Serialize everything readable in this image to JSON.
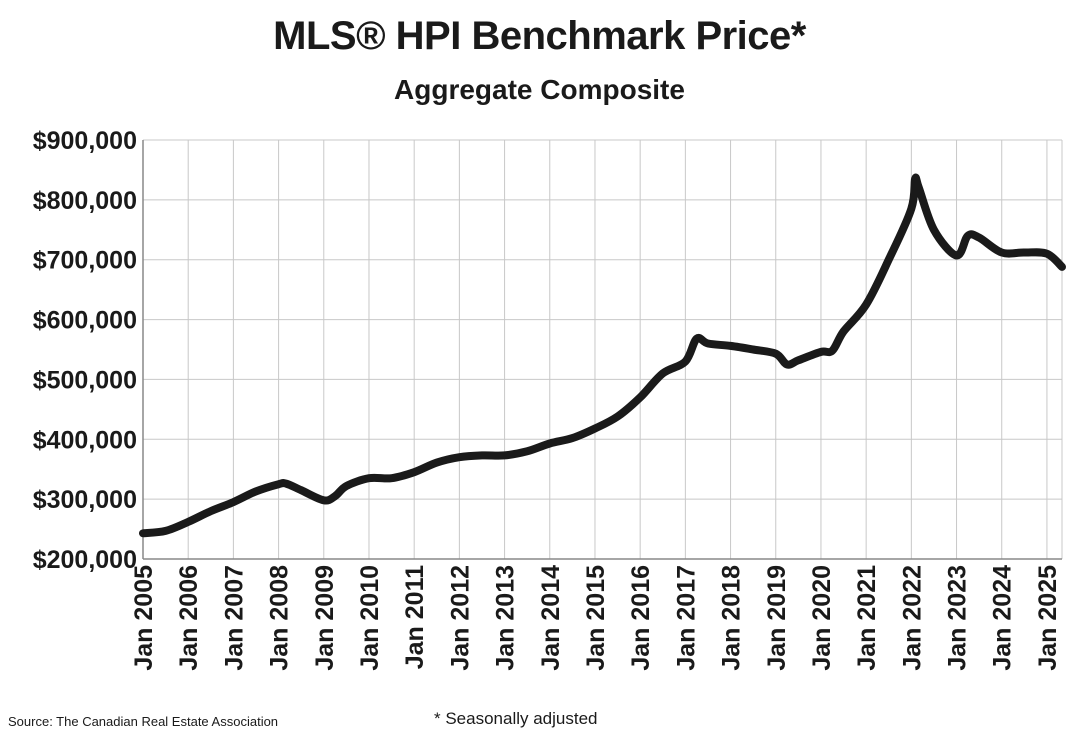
{
  "chart_data": {
    "type": "line",
    "title": "MLS® HPI Benchmark Price*",
    "subtitle": "Aggregate Composite",
    "xlabel": "",
    "ylabel": "",
    "ylim": [
      200000,
      900000
    ],
    "yticks": [
      "$200,000",
      "$300,000",
      "$400,000",
      "$500,000",
      "$600,000",
      "$700,000",
      "$800,000",
      "$900,000"
    ],
    "yticks_values": [
      200000,
      300000,
      400000,
      500000,
      600000,
      700000,
      800000,
      900000
    ],
    "xlim": [
      "2005-01",
      "2025-05"
    ],
    "xticks": [
      "Jan 2005",
      "Jan 2006",
      "Jan 2007",
      "Jan 2008",
      "Jan 2009",
      "Jan 2010",
      "Jan 2011",
      "Jan 2012",
      "Jan 2013",
      "Jan 2014",
      "Jan 2015",
      "Jan 2016",
      "Jan 2017",
      "Jan 2018",
      "Jan 2019",
      "Jan 2020",
      "Jan 2021",
      "Jan 2022",
      "Jan 2023",
      "Jan 2024",
      "Jan 2025"
    ],
    "grid": true,
    "line_color": "#1a1a1a",
    "series": [
      {
        "x": [
          "2005-01",
          "2005-07",
          "2006-01",
          "2006-07",
          "2007-01",
          "2007-07",
          "2008-01",
          "2008-03",
          "2008-07",
          "2009-01",
          "2009-04",
          "2009-07",
          "2010-01",
          "2010-07",
          "2011-01",
          "2011-07",
          "2012-01",
          "2012-07",
          "2013-01",
          "2013-07",
          "2014-01",
          "2014-07",
          "2015-01",
          "2015-07",
          "2016-01",
          "2016-07",
          "2017-01",
          "2017-04",
          "2017-07",
          "2018-01",
          "2018-07",
          "2019-01",
          "2019-04",
          "2019-07",
          "2020-01",
          "2020-04",
          "2020-07",
          "2021-01",
          "2021-07",
          "2022-01",
          "2022-02",
          "2022-03",
          "2022-07",
          "2023-01",
          "2023-04",
          "2023-07",
          "2024-01",
          "2024-07",
          "2025-01",
          "2025-05"
        ],
        "values": [
          243000,
          247000,
          262000,
          280000,
          295000,
          313000,
          325000,
          326000,
          315000,
          298000,
          305000,
          322000,
          335000,
          335000,
          345000,
          361000,
          370000,
          373000,
          373000,
          380000,
          393000,
          402000,
          418000,
          438000,
          470000,
          510000,
          530000,
          568000,
          560000,
          556000,
          550000,
          543000,
          525000,
          532000,
          546000,
          548000,
          580000,
          625000,
          700000,
          785000,
          835000,
          820000,
          750000,
          707000,
          740000,
          737000,
          712000,
          712000,
          710000,
          688000
        ]
      }
    ]
  },
  "source": "Source: The Canadian Real Estate Association",
  "footnote": "* Seasonally adjusted"
}
